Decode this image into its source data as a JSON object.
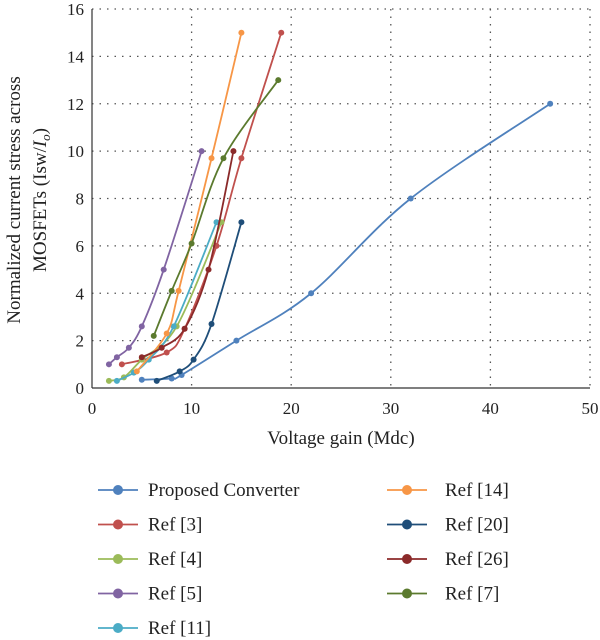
{
  "chart_data": {
    "type": "line",
    "xlabel": "Voltage gain (Mdc)",
    "ylabel_line1": "Normalized current stress across",
    "ylabel_line2_prefix": "MOSFETs (Isw/",
    "ylabel_line2_italic": "I",
    "ylabel_line2_sub": "o",
    "ylabel_line2_suffix": ")",
    "xlim": [
      0,
      50
    ],
    "ylim": [
      0,
      16
    ],
    "xticks": [
      0,
      10,
      20,
      30,
      40,
      50
    ],
    "yticks": [
      0,
      2,
      4,
      6,
      8,
      10,
      12,
      14,
      16
    ],
    "grid": "dotted",
    "legend_position": "bottom",
    "series": [
      {
        "name": "Proposed Converter",
        "color": "#4f81bd",
        "x": [
          5,
          8,
          9,
          14.5,
          22,
          32,
          46
        ],
        "y": [
          0.35,
          0.4,
          0.55,
          2,
          4,
          8,
          12
        ]
      },
      {
        "name": "Ref  [3]",
        "color": "#c0504d",
        "x": [
          3,
          7.5,
          9.3,
          12.5,
          15,
          19
        ],
        "y": [
          1,
          1.5,
          2.5,
          6,
          9.7,
          15
        ]
      },
      {
        "name": "Ref [4]",
        "color": "#9bbb59",
        "x": [
          1.7,
          3.2,
          5,
          8.5,
          13
        ],
        "y": [
          0.3,
          0.45,
          1.2,
          2.6,
          7
        ]
      },
      {
        "name": "Ref [5]",
        "color": "#8064a2",
        "x": [
          1.7,
          2.5,
          3.7,
          5,
          7.2,
          11
        ],
        "y": [
          1,
          1.3,
          1.7,
          2.6,
          5,
          10
        ]
      },
      {
        "name": "Ref [11]",
        "color": "#4bacc6",
        "x": [
          2.5,
          4.2,
          5.7,
          8.2,
          12.5
        ],
        "y": [
          0.3,
          0.65,
          1.2,
          2.6,
          7
        ]
      },
      {
        "name": "Ref [14]",
        "color": "#f79646",
        "x": [
          4.5,
          7.5,
          8.7,
          12,
          15
        ],
        "y": [
          0.7,
          2.3,
          4.1,
          9.7,
          15
        ]
      },
      {
        "name": "Ref [20]",
        "color": "#1f4e79",
        "x": [
          6.5,
          8.8,
          10.2,
          12,
          15
        ],
        "y": [
          0.3,
          0.7,
          1.2,
          2.7,
          7
        ]
      },
      {
        "name": "Ref [26]",
        "color": "#8b2a2a",
        "x": [
          5,
          7,
          9.3,
          11.7,
          14.2
        ],
        "y": [
          1.3,
          1.7,
          2.5,
          5,
          10
        ]
      },
      {
        "name": "Ref [7]",
        "color": "#5b7a2e",
        "x": [
          6.2,
          8,
          10,
          13.2,
          18.7
        ],
        "y": [
          2.2,
          4.1,
          6.1,
          9.7,
          13
        ]
      }
    ],
    "legend": {
      "col1": [
        "Proposed Converter",
        "Ref  [3]",
        "Ref [4]",
        "Ref [5]",
        "Ref [11]"
      ],
      "col2": [
        "Ref [14]",
        "Ref [20]",
        "Ref [26]",
        "Ref [7]"
      ]
    }
  }
}
